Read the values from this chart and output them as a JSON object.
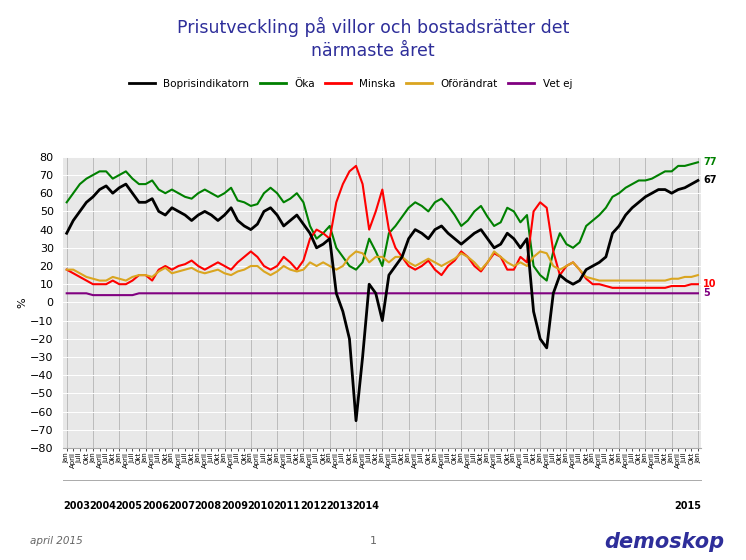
{
  "title": "Prisutveckling på villor och bostadsrätter det\nnärmaste året",
  "title_color": "#2E2E9A",
  "ylabel": "%",
  "ylim": [
    -80,
    80
  ],
  "background_color": "#ffffff",
  "plot_bg_color": "#e8e8e8",
  "legend_items": [
    "Boprisindikatorn",
    "Öka",
    "Minska",
    "Oförändrat",
    "Vet ej"
  ],
  "legend_colors": [
    "#000000",
    "#008000",
    "#ff0000",
    "#DAA520",
    "#800080"
  ],
  "footer_left": "april 2015",
  "footer_center": "1",
  "months_cycle": [
    "Jan",
    "April",
    "Juli",
    "Okt"
  ],
  "year_labels": [
    "2003",
    "2004",
    "2005",
    "2006",
    "2007",
    "2008",
    "2009",
    "2010",
    "2011",
    "2012",
    "2013",
    "2014",
    "2015"
  ],
  "series": {
    "bopris": {
      "color": "#000000",
      "linewidth": 2.0,
      "data_y": [
        38,
        45,
        50,
        55,
        58,
        62,
        64,
        60,
        63,
        65,
        60,
        55,
        55,
        57,
        50,
        48,
        52,
        50,
        48,
        45,
        48,
        50,
        48,
        45,
        48,
        52,
        45,
        42,
        40,
        43,
        50,
        52,
        48,
        42,
        45,
        48,
        43,
        38,
        30,
        32,
        35,
        5,
        -5,
        -20,
        -65,
        -30,
        10,
        5,
        -10,
        15,
        20,
        25,
        35,
        40,
        38,
        35,
        40,
        42,
        38,
        35,
        32,
        35,
        38,
        40,
        35,
        30,
        32,
        38,
        35,
        30,
        35,
        -5,
        -20,
        -25,
        5,
        15,
        12,
        10,
        12,
        18,
        20,
        22,
        25,
        38,
        42,
        48,
        52,
        55,
        58,
        60,
        62,
        62,
        60,
        62,
        63,
        65,
        67
      ]
    },
    "oka": {
      "color": "#008000",
      "linewidth": 1.5,
      "data_y": [
        55,
        60,
        65,
        68,
        70,
        72,
        72,
        68,
        70,
        72,
        68,
        65,
        65,
        67,
        62,
        60,
        62,
        60,
        58,
        57,
        60,
        62,
        60,
        58,
        60,
        63,
        56,
        55,
        53,
        54,
        60,
        63,
        60,
        55,
        57,
        60,
        55,
        42,
        35,
        38,
        42,
        30,
        25,
        20,
        18,
        22,
        35,
        28,
        20,
        38,
        42,
        47,
        52,
        55,
        53,
        50,
        55,
        57,
        53,
        48,
        42,
        45,
        50,
        53,
        47,
        42,
        44,
        52,
        50,
        44,
        48,
        20,
        15,
        12,
        28,
        38,
        32,
        30,
        33,
        42,
        45,
        48,
        52,
        58,
        60,
        63,
        65,
        67,
        67,
        68,
        70,
        72,
        72,
        75,
        75,
        76,
        77
      ]
    },
    "minska": {
      "color": "#ff0000",
      "linewidth": 1.5,
      "data_y": [
        18,
        16,
        14,
        12,
        10,
        10,
        10,
        12,
        10,
        10,
        12,
        15,
        15,
        12,
        18,
        20,
        18,
        20,
        21,
        23,
        20,
        18,
        20,
        22,
        20,
        18,
        22,
        25,
        28,
        25,
        20,
        18,
        20,
        25,
        22,
        18,
        23,
        35,
        40,
        38,
        35,
        55,
        65,
        72,
        75,
        65,
        40,
        50,
        62,
        40,
        30,
        25,
        20,
        18,
        20,
        23,
        18,
        15,
        20,
        23,
        28,
        25,
        20,
        17,
        22,
        27,
        25,
        18,
        18,
        25,
        22,
        50,
        55,
        52,
        28,
        15,
        20,
        22,
        18,
        13,
        10,
        10,
        9,
        8,
        8,
        8,
        8,
        8,
        8,
        8,
        8,
        8,
        9,
        9,
        9,
        10,
        10
      ]
    },
    "oforandrat": {
      "color": "#DAA520",
      "linewidth": 1.5,
      "data_y": [
        18,
        18,
        16,
        14,
        13,
        12,
        12,
        14,
        13,
        12,
        14,
        15,
        15,
        14,
        17,
        19,
        16,
        17,
        18,
        19,
        17,
        16,
        17,
        18,
        16,
        15,
        17,
        18,
        20,
        20,
        17,
        15,
        17,
        20,
        18,
        17,
        18,
        22,
        20,
        22,
        20,
        18,
        20,
        25,
        28,
        27,
        22,
        25,
        25,
        22,
        25,
        25,
        22,
        20,
        22,
        24,
        22,
        20,
        22,
        24,
        27,
        25,
        22,
        18,
        22,
        28,
        25,
        22,
        20,
        22,
        20,
        25,
        28,
        27,
        20,
        18,
        20,
        22,
        18,
        14,
        13,
        12,
        12,
        12,
        12,
        12,
        12,
        12,
        12,
        12,
        12,
        12,
        13,
        13,
        14,
        14,
        15
      ]
    },
    "vetej": {
      "color": "#800080",
      "linewidth": 1.5,
      "data_y": [
        5,
        5,
        5,
        5,
        4,
        4,
        4,
        4,
        4,
        4,
        4,
        5,
        5,
        5,
        5,
        5,
        5,
        5,
        5,
        5,
        5,
        5,
        5,
        5,
        5,
        5,
        5,
        5,
        5,
        5,
        5,
        5,
        5,
        5,
        5,
        5,
        5,
        5,
        5,
        5,
        5,
        5,
        5,
        5,
        5,
        5,
        5,
        5,
        5,
        5,
        5,
        5,
        5,
        5,
        5,
        5,
        5,
        5,
        5,
        5,
        5,
        5,
        5,
        5,
        5,
        5,
        5,
        5,
        5,
        5,
        5,
        5,
        5,
        5,
        5,
        5,
        5,
        5,
        5,
        5,
        5,
        5,
        5,
        5,
        5,
        5,
        5,
        5,
        5,
        5,
        5,
        5,
        5,
        5,
        5,
        5,
        5
      ]
    }
  }
}
